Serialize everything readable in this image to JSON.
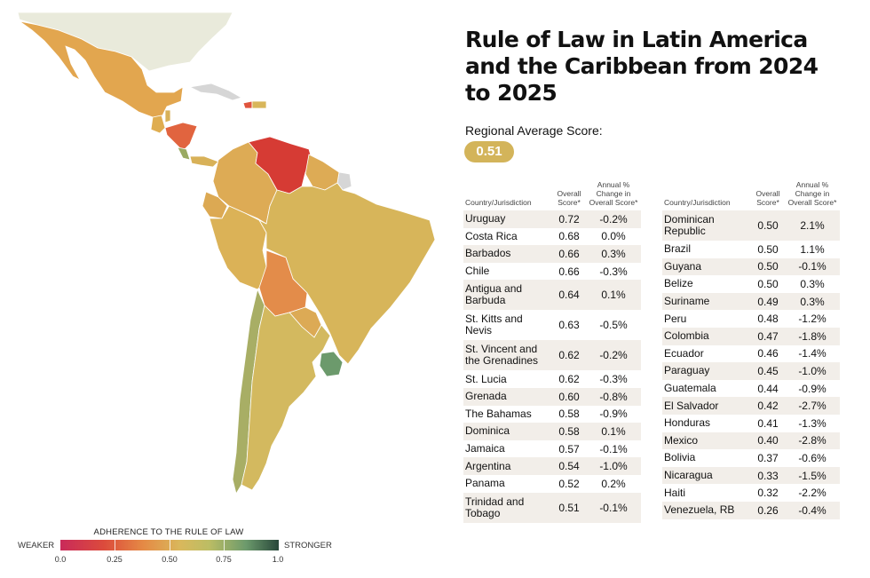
{
  "title": "Rule of Law in Latin America and the Caribbean from 2024 to 2025",
  "regional_average": {
    "label": "Regional Average Score:",
    "value": "0.51"
  },
  "headers": {
    "country": "Country/Jurisdiction",
    "score": "Overall Score*",
    "change": "Annual % Change in Overall Score*"
  },
  "table_left": [
    {
      "country": "Uruguay",
      "score": "0.72",
      "change": "-0.2%"
    },
    {
      "country": "Costa Rica",
      "score": "0.68",
      "change": "0.0%"
    },
    {
      "country": "Barbados",
      "score": "0.66",
      "change": "0.3%"
    },
    {
      "country": "Chile",
      "score": "0.66",
      "change": "-0.3%"
    },
    {
      "country": "Antigua and Barbuda",
      "score": "0.64",
      "change": "0.1%"
    },
    {
      "country": "St. Kitts and Nevis",
      "score": "0.63",
      "change": "-0.5%"
    },
    {
      "country": "St. Vincent and the Grenadines",
      "score": "0.62",
      "change": "-0.2%"
    },
    {
      "country": "St. Lucia",
      "score": "0.62",
      "change": "-0.3%"
    },
    {
      "country": "Grenada",
      "score": "0.60",
      "change": "-0.8%"
    },
    {
      "country": "The Bahamas",
      "score": "0.58",
      "change": "-0.9%"
    },
    {
      "country": "Dominica",
      "score": "0.58",
      "change": "0.1%"
    },
    {
      "country": "Jamaica",
      "score": "0.57",
      "change": "-0.1%"
    },
    {
      "country": "Argentina",
      "score": "0.54",
      "change": "-1.0%"
    },
    {
      "country": "Panama",
      "score": "0.52",
      "change": "0.2%"
    },
    {
      "country": "Trinidad and Tobago",
      "score": "0.51",
      "change": "-0.1%"
    }
  ],
  "table_right": [
    {
      "country": "Dominican Republic",
      "score": "0.50",
      "change": "2.1%"
    },
    {
      "country": "Brazil",
      "score": "0.50",
      "change": "1.1%"
    },
    {
      "country": "Guyana",
      "score": "0.50",
      "change": "-0.1%"
    },
    {
      "country": "Belize",
      "score": "0.50",
      "change": "0.3%"
    },
    {
      "country": "Suriname",
      "score": "0.49",
      "change": "0.3%"
    },
    {
      "country": "Peru",
      "score": "0.48",
      "change": "-1.2%"
    },
    {
      "country": "Colombia",
      "score": "0.47",
      "change": "-1.8%"
    },
    {
      "country": "Ecuador",
      "score": "0.46",
      "change": "-1.4%"
    },
    {
      "country": "Paraguay",
      "score": "0.45",
      "change": "-1.0%"
    },
    {
      "country": "Guatemala",
      "score": "0.44",
      "change": "-0.9%"
    },
    {
      "country": "El Salvador",
      "score": "0.42",
      "change": "-2.7%"
    },
    {
      "country": "Honduras",
      "score": "0.41",
      "change": "-1.3%"
    },
    {
      "country": "Mexico",
      "score": "0.40",
      "change": "-2.8%"
    },
    {
      "country": "Bolivia",
      "score": "0.37",
      "change": "-0.6%"
    },
    {
      "country": "Nicaragua",
      "score": "0.33",
      "change": "-1.5%"
    },
    {
      "country": "Haiti",
      "score": "0.32",
      "change": "-2.2%"
    },
    {
      "country": "Venezuela, RB",
      "score": "0.26",
      "change": "-0.4%"
    }
  ],
  "legend": {
    "title": "ADHERENCE TO THE RULE OF LAW",
    "weaker": "WEAKER",
    "stronger": "STRONGER",
    "ticks": [
      "0.0",
      "0.25",
      "0.50",
      "0.75",
      "1.0"
    ]
  },
  "colors": {
    "badge": "#d3b45a",
    "us_land": "#e9eadb",
    "no_data": "#d6d6d6",
    "mexico": "#e2a64f",
    "guatemala": "#dfad50",
    "nicaragua": "#e1643f",
    "costa_rica": "#9aaa62",
    "panama": "#d8b158",
    "venezuela": "#d63b34",
    "colombia": "#ddab55",
    "ecuador": "#dca953",
    "peru": "#dbb257",
    "brazil": "#d7b55a",
    "bolivia": "#e38c4a",
    "paraguay": "#dcaa55",
    "chile": "#a8ae65",
    "argentina": "#d3b95f",
    "uruguay": "#6c9a6c",
    "haiti": "#e0543d",
    "dominican_republic": "#d8b65a"
  }
}
